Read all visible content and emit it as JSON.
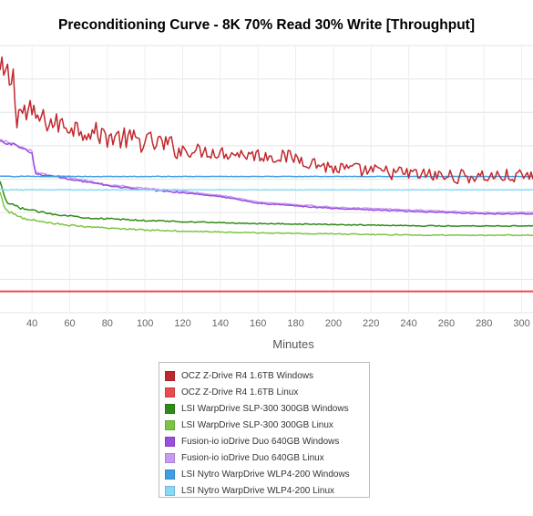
{
  "chart_data": {
    "type": "line",
    "title": "Preconditioning Curve - 8K 70% Read 30% Write [Throughput]",
    "xlabel": "Minutes",
    "ylabel": "",
    "xlim": [
      23,
      306
    ],
    "x_ticks": [
      40,
      60,
      80,
      100,
      120,
      140,
      160,
      180,
      200,
      220,
      240,
      260,
      280,
      300
    ],
    "grid": true,
    "legend_position": "bottom-center",
    "series": [
      {
        "name": "OCZ Z-Drive R4 1.6TB Windows",
        "color": "#c0282d",
        "noise": 0.06,
        "x": [
          23,
          27,
          30,
          31,
          32,
          35,
          40,
          50,
          60,
          80,
          100,
          110,
          120,
          140,
          160,
          180,
          200,
          220,
          240,
          260,
          280,
          300,
          306
        ],
        "y": [
          0.89,
          0.88,
          0.87,
          0.82,
          0.76,
          0.75,
          0.74,
          0.71,
          0.7,
          0.66,
          0.64,
          0.63,
          0.61,
          0.6,
          0.59,
          0.58,
          0.54,
          0.53,
          0.52,
          0.51,
          0.51,
          0.51,
          0.51
        ]
      },
      {
        "name": "OCZ Z-Drive R4 1.6TB Linux",
        "color": "#e94a50",
        "noise": 0.0,
        "x": [
          23,
          306
        ],
        "y": [
          0.08,
          0.08
        ]
      },
      {
        "name": "LSI WarpDrive SLP-300 300GB Windows",
        "color": "#2e8b16",
        "noise": 0.004,
        "x": [
          23,
          25,
          27,
          35,
          50,
          70,
          100,
          150,
          200,
          250,
          306
        ],
        "y": [
          0.49,
          0.44,
          0.41,
          0.39,
          0.37,
          0.355,
          0.345,
          0.335,
          0.33,
          0.325,
          0.325
        ]
      },
      {
        "name": "LSI WarpDrive SLP-300 300GB Linux",
        "color": "#7cc544",
        "noise": 0.004,
        "x": [
          23,
          25,
          27,
          35,
          50,
          70,
          100,
          150,
          200,
          250,
          306
        ],
        "y": [
          0.45,
          0.4,
          0.38,
          0.355,
          0.335,
          0.32,
          0.31,
          0.3,
          0.295,
          0.29,
          0.29
        ]
      },
      {
        "name": "Fusion-io ioDrive Duo 640GB Windows",
        "color": "#9b4de0",
        "noise": 0.004,
        "x": [
          23,
          30,
          40,
          41,
          42,
          60,
          80,
          100,
          120,
          140,
          160,
          180,
          200,
          240,
          280,
          306
        ],
        "y": [
          0.64,
          0.63,
          0.6,
          0.55,
          0.52,
          0.5,
          0.475,
          0.46,
          0.45,
          0.435,
          0.41,
          0.4,
          0.39,
          0.38,
          0.37,
          0.37
        ]
      },
      {
        "name": "Fusion-io ioDrive Duo 640GB Linux",
        "color": "#c59cf2",
        "noise": 0.004,
        "x": [
          23,
          30,
          40,
          41,
          42,
          60,
          80,
          100,
          120,
          140,
          160,
          180,
          200,
          240,
          280,
          306
        ],
        "y": [
          0.645,
          0.635,
          0.605,
          0.555,
          0.525,
          0.505,
          0.48,
          0.465,
          0.455,
          0.44,
          0.415,
          0.405,
          0.395,
          0.385,
          0.375,
          0.375
        ]
      },
      {
        "name": "LSI Nytro WarpDrive WLP4-200 Windows",
        "color": "#3f9fe4",
        "noise": 0.0015,
        "x": [
          23,
          306
        ],
        "y": [
          0.51,
          0.51
        ]
      },
      {
        "name": "LSI Nytro WarpDrive WLP4-200 Linux",
        "color": "#8ad8f7",
        "noise": 0.002,
        "x": [
          23,
          306
        ],
        "y": [
          0.46,
          0.46
        ]
      }
    ]
  }
}
